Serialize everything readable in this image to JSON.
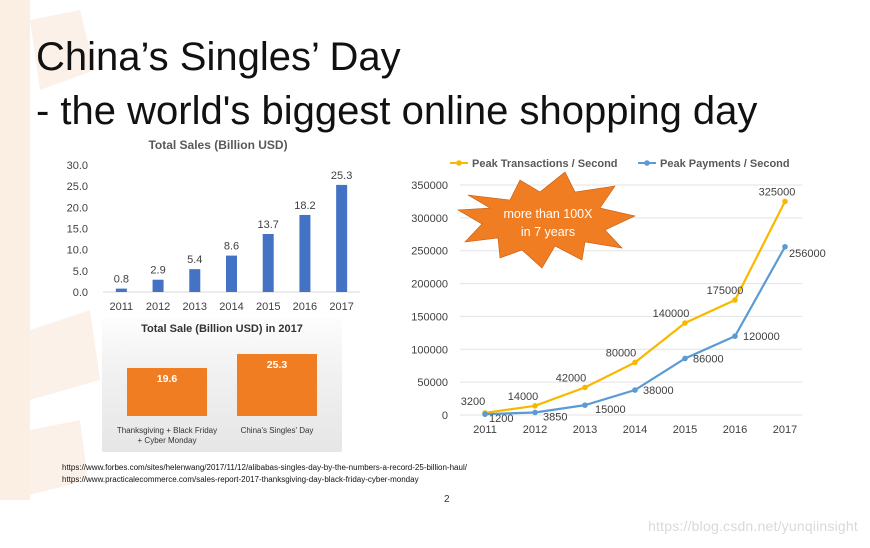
{
  "slide": {
    "title_line1": "China’s Singles’ Day",
    "title_line2": "- the world's biggest online shopping day",
    "page_number": "2",
    "watermark": "https://blog.csdn.net/yunqiinsight",
    "sources": [
      "https://www.forbes.com/sites/helenwang/2017/11/12/alibabas-singles-day-by-the-numbers-a-record-25-billion-haul/",
      "https://www.practicalecommerce.com/sales-report-2017-thanksgiving-day-black-friday-cyber-monday"
    ],
    "callout": {
      "line1": "more than 100X",
      "line2": "in 7 years",
      "color": "#f07d22"
    },
    "colors": {
      "blue": "#4472c4",
      "orange": "#f07d22",
      "yellow": "#f9b800",
      "lightblue": "#5b9bd5",
      "bgdeco": "#fbeee3"
    }
  },
  "chart_data": [
    {
      "type": "bar",
      "title": "Total Sales (Billion USD)",
      "categories": [
        "2011",
        "2012",
        "2013",
        "2014",
        "2015",
        "2016",
        "2017"
      ],
      "values": [
        0.8,
        2.9,
        5.4,
        8.6,
        13.7,
        18.2,
        25.3
      ],
      "value_labels": [
        "0.8",
        "2.9",
        "5.4",
        "8.6",
        "13.7",
        "18.2",
        "25.3"
      ],
      "ylim": [
        0,
        30
      ],
      "yticks": [
        "0.0",
        "5.0",
        "10.0",
        "15.0",
        "20.0",
        "25.0",
        "30.0"
      ],
      "grid": false,
      "legend": "none"
    },
    {
      "type": "bar",
      "title": "Total Sale (Billion USD) in 2017",
      "categories": [
        "Thanksgiving + Black Friday + Cyber Monday",
        "China's Singles' Day"
      ],
      "category_lines": [
        [
          "Thanksgiving + Black Friday",
          "+ Cyber Monday"
        ],
        [
          "China's Singles' Day"
        ]
      ],
      "values": [
        19.6,
        25.3
      ],
      "value_labels": [
        "19.6",
        "25.3"
      ],
      "ylim": [
        0,
        30
      ],
      "grid": false,
      "legend": "none"
    },
    {
      "type": "line",
      "x": [
        "2011",
        "2012",
        "2013",
        "2014",
        "2015",
        "2016",
        "2017"
      ],
      "ylim": [
        0,
        350000
      ],
      "yticks": [
        "0",
        "50000",
        "100000",
        "150000",
        "200000",
        "250000",
        "300000",
        "350000"
      ],
      "grid": true,
      "legend": "top",
      "series": [
        {
          "name": "Peak Transactions / Second",
          "values": [
            3200,
            14000,
            42000,
            80000,
            140000,
            175000,
            325000
          ],
          "labels": [
            "3200",
            "14000",
            "42000",
            "80000",
            "140000",
            "175000",
            "325000"
          ]
        },
        {
          "name": "Peak Payments / Second",
          "values": [
            1200,
            3850,
            15000,
            38000,
            86000,
            120000,
            256000
          ],
          "labels": [
            "1200",
            "3850",
            "15000",
            "38000",
            "86000",
            "120000",
            "256000"
          ]
        }
      ]
    }
  ]
}
